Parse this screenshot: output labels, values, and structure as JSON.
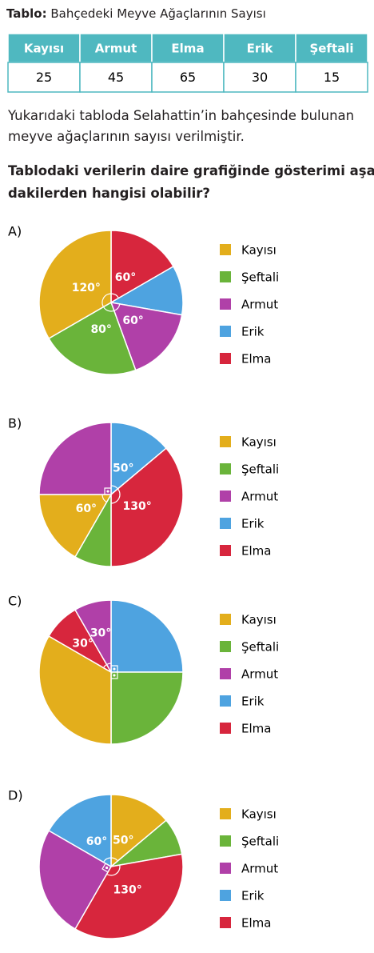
{
  "caption": {
    "bold": "Tablo:",
    "text": "Bahçedeki Meyve Ağaçlarının Sayısı"
  },
  "table": {
    "header": [
      "Kayısı",
      "Armut",
      "Elma",
      "Erik",
      "Şeftali"
    ],
    "rows": [
      [
        25,
        45,
        65,
        30,
        15
      ]
    ]
  },
  "paragraph": [
    "Yukarıdaki tabloda Selahattin’in bahçesinde bulunan",
    "meyve ağaçlarının sayısı verilmiştir."
  ],
  "question": [
    "Tablodaki verilerin daire grafiğinde gösterimi aşağı-",
    "dakilerden hangisi olabilir?"
  ],
  "legend": [
    {
      "name": "Kayısı",
      "color": "#e3ae1c"
    },
    {
      "name": "Şeftali",
      "color": "#6ab43a"
    },
    {
      "name": "Armut",
      "color": "#b040a8"
    },
    {
      "name": "Erik",
      "color": "#4ea3e0"
    },
    {
      "name": "Elma",
      "color": "#d7263d"
    }
  ],
  "options": [
    {
      "label": "A)",
      "slices": [
        {
          "color": "#d7263d",
          "value": 60,
          "value_label": "60°"
        },
        {
          "color": "#4ea3e0",
          "value": 40
        },
        {
          "color": "#b040a8",
          "value": 60,
          "value_label": "60°"
        },
        {
          "color": "#6ab43a",
          "value": 80,
          "value_label": "80°"
        },
        {
          "color": "#e3ae1c",
          "value": 120,
          "value_label": "120°"
        }
      ]
    },
    {
      "label": "B)",
      "slices": [
        {
          "color": "#4ea3e0",
          "value": 50,
          "value_label": "50°"
        },
        {
          "color": "#d7263d",
          "value": 130,
          "value_label": "130°"
        },
        {
          "color": "#6ab43a",
          "value": 30
        },
        {
          "color": "#e3ae1c",
          "value": 60,
          "value_label": "60°"
        },
        {
          "color": "#b040a8",
          "value": 90
        }
      ]
    },
    {
      "label": "C)",
      "slices": [
        {
          "color": "#4ea3e0",
          "value": 90
        },
        {
          "color": "#6ab43a",
          "value": 90
        },
        {
          "color": "#e3ae1c",
          "value": 120
        },
        {
          "color": "#d7263d",
          "value": 30,
          "value_label": "30°"
        },
        {
          "color": "#b040a8",
          "value": 30,
          "value_label": "30°"
        }
      ]
    },
    {
      "label": "D)",
      "slices": [
        {
          "color": "#e3ae1c",
          "value": 50,
          "value_label": "50°"
        },
        {
          "color": "#6ab43a",
          "value": 30
        },
        {
          "color": "#d7263d",
          "value": 130,
          "value_label": "130°"
        },
        {
          "color": "#b040a8",
          "value": 90
        },
        {
          "color": "#4ea3e0",
          "value": 60,
          "value_label": "60°"
        }
      ]
    }
  ]
}
